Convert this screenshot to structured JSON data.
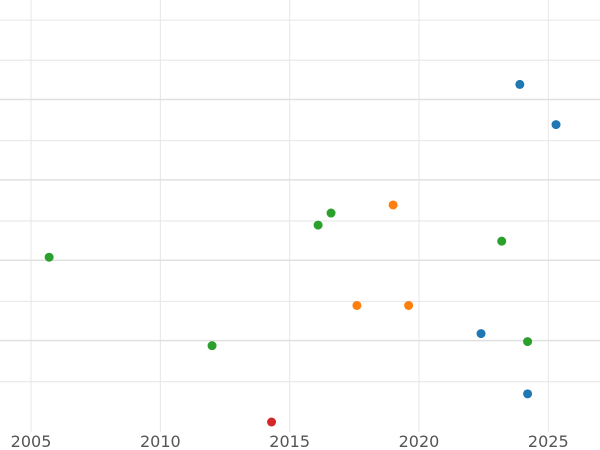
{
  "chart_data": {
    "type": "scatter",
    "title": "",
    "xlabel": "",
    "ylabel": "",
    "xlim": [
      2003.8,
      2027.0
    ],
    "ylim": [
      0,
      5.25
    ],
    "x_ticks": [
      2005,
      2010,
      2015,
      2020,
      2025
    ],
    "x_tick_labels": [
      "2005",
      "2010",
      "2015",
      "2020",
      "2025"
    ],
    "y_grid": [
      0.5,
      1.5,
      2.5,
      3.5,
      4.5,
      5.0
    ],
    "y_grid_major": [
      1.0,
      2.0,
      3.0,
      4.0
    ],
    "grid": true,
    "legend": "none",
    "series": [
      {
        "color": "#1f77b4",
        "points": [
          {
            "x": 2023.9,
            "y": 4.2
          },
          {
            "x": 2025.3,
            "y": 3.7
          },
          {
            "x": 2022.4,
            "y": 1.1
          },
          {
            "x": 2024.2,
            "y": 0.35
          }
        ]
      },
      {
        "color": "#ff7f0e",
        "points": [
          {
            "x": 2019.0,
            "y": 2.7
          },
          {
            "x": 2017.6,
            "y": 1.45
          },
          {
            "x": 2019.6,
            "y": 1.45
          }
        ]
      },
      {
        "color": "#2ca02c",
        "points": [
          {
            "x": 2005.7,
            "y": 2.05
          },
          {
            "x": 2012.0,
            "y": 0.95
          },
          {
            "x": 2016.1,
            "y": 2.45
          },
          {
            "x": 2016.6,
            "y": 2.6
          },
          {
            "x": 2023.2,
            "y": 2.25
          },
          {
            "x": 2024.2,
            "y": 1.0
          }
        ]
      },
      {
        "color": "#d62728",
        "points": [
          {
            "x": 2014.3,
            "y": 0.0
          }
        ]
      }
    ]
  }
}
